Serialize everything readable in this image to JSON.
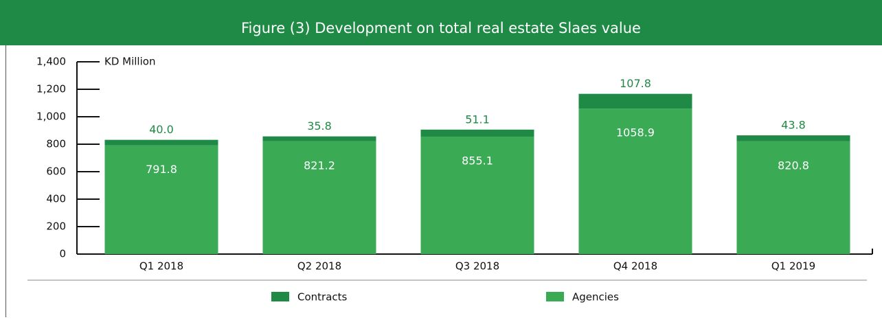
{
  "chart_data": {
    "type": "stacked-bar",
    "title": "Figure (3) Development on total real estate Slaes value",
    "y_label": "KD Million",
    "categories": [
      "Q1 2018",
      "Q2 2018",
      "Q3 2018",
      "Q4 2018",
      "Q1 2019"
    ],
    "series": [
      {
        "name": "Contracts",
        "color": "#1e8a45",
        "values": [
          40.0,
          35.8,
          51.1,
          107.8,
          43.8
        ],
        "value_labels": [
          "40.0",
          "35.8",
          "51.1",
          "107.8",
          "43.8"
        ]
      },
      {
        "name": "Agencies",
        "color": "#3aaa55",
        "values": [
          791.8,
          821.2,
          855.1,
          1058.9,
          820.8
        ],
        "value_labels": [
          "791.8",
          "821.2",
          "855.1",
          "1058.9",
          "820.8"
        ]
      }
    ],
    "ylim": [
      0,
      1400
    ],
    "yticks": [
      0,
      200,
      400,
      600,
      800,
      {
        "value": 1000,
        "label": "1,000"
      },
      {
        "value": 1200,
        "label": "1,200"
      },
      {
        "value": 1400,
        "label": "1,400"
      }
    ],
    "header_color": "#1e8a45"
  }
}
